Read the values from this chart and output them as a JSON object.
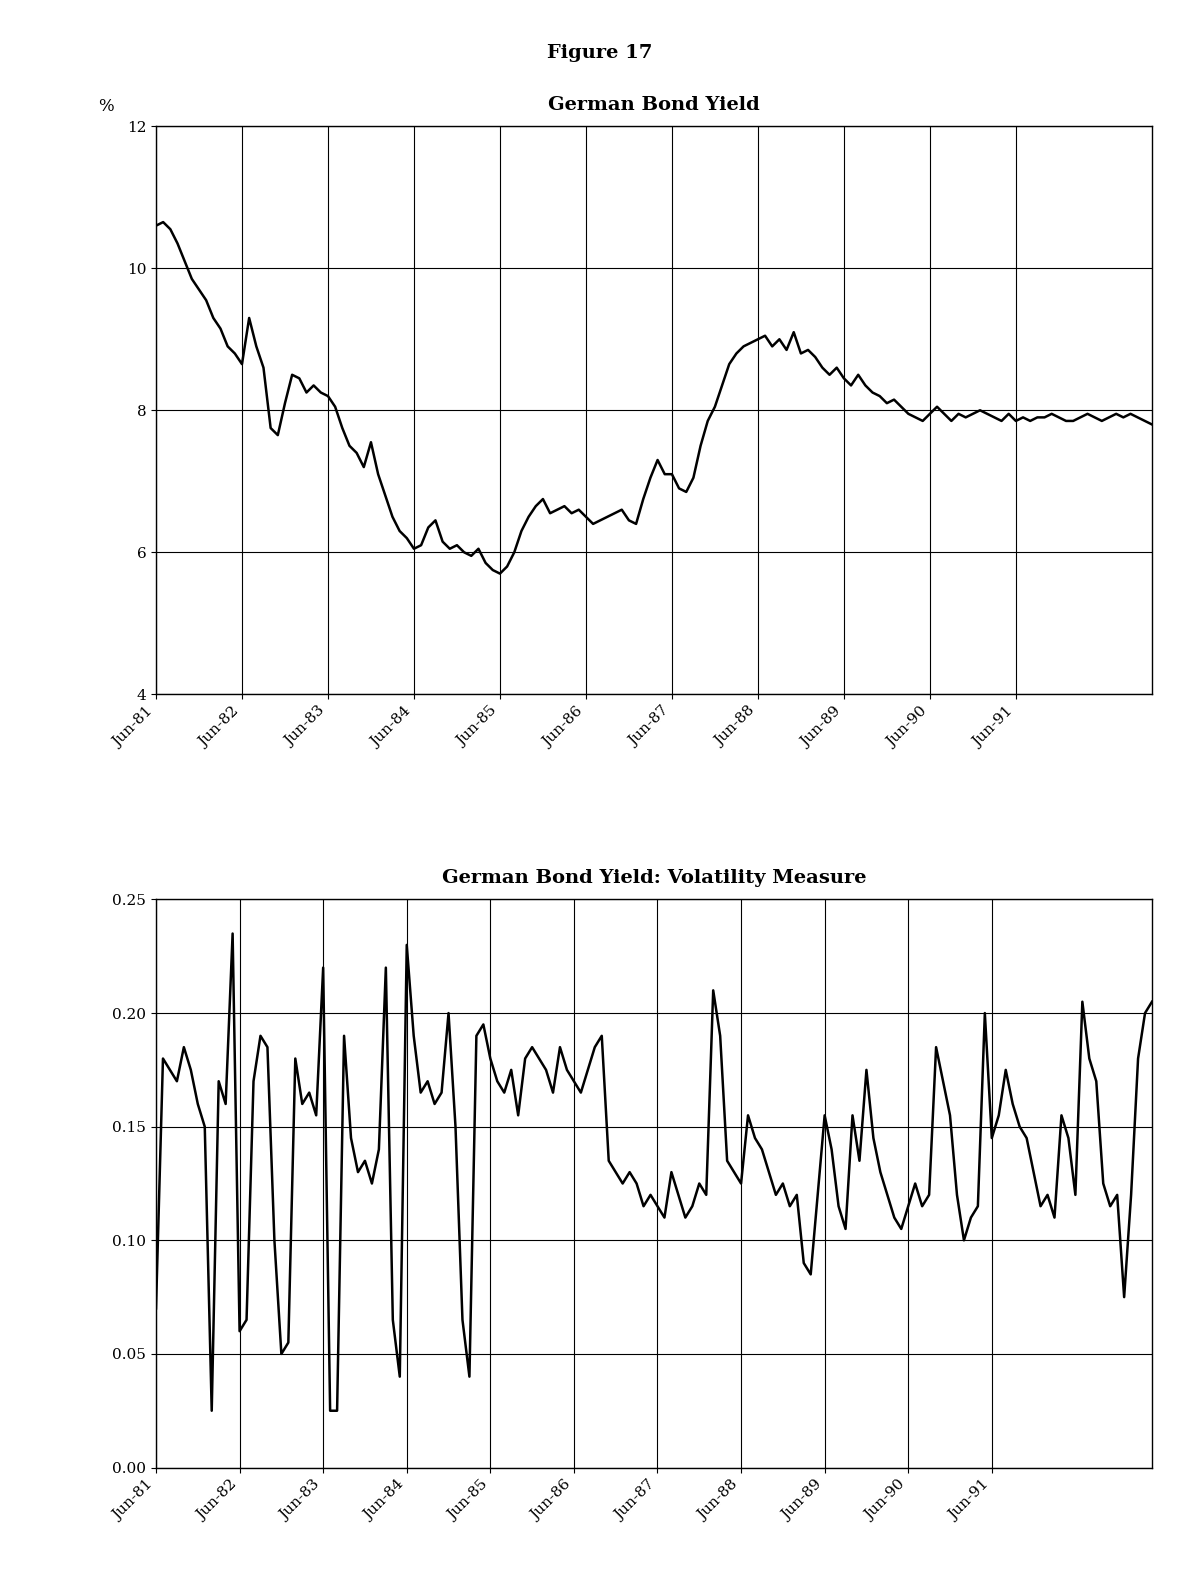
{
  "figure_title": "Figure 17",
  "subplot1_title": "German Bond Yield",
  "subplot2_title": "German Bond Yield: Volatility Measure",
  "ylabel1": "%",
  "ylim1": [
    4,
    12
  ],
  "yticks1": [
    4,
    6,
    8,
    10,
    12
  ],
  "ylim2": [
    0.0,
    0.25
  ],
  "yticks2": [
    0.0,
    0.05,
    0.1,
    0.15,
    0.2,
    0.25
  ],
  "xtick_labels": [
    "Jun-81",
    "Jun-82",
    "Jun-83",
    "Jun-84",
    "Jun-85",
    "Jun-86",
    "Jun-87",
    "Jun-88",
    "Jun-89",
    "Jun-90",
    "Jun-91"
  ],
  "yield_data": [
    10.6,
    10.65,
    10.55,
    10.35,
    10.1,
    9.85,
    9.7,
    9.55,
    9.3,
    9.15,
    8.9,
    8.8,
    8.65,
    9.3,
    8.9,
    8.6,
    7.75,
    7.65,
    8.1,
    8.5,
    8.45,
    8.25,
    8.35,
    8.25,
    8.2,
    8.05,
    7.75,
    7.5,
    7.4,
    7.2,
    7.55,
    7.1,
    6.8,
    6.5,
    6.3,
    6.2,
    6.05,
    6.1,
    6.35,
    6.45,
    6.15,
    6.05,
    6.1,
    6.0,
    5.95,
    6.05,
    5.85,
    5.75,
    5.7,
    5.8,
    6.0,
    6.3,
    6.5,
    6.65,
    6.75,
    6.55,
    6.6,
    6.65,
    6.55,
    6.6,
    6.5,
    6.4,
    6.45,
    6.5,
    6.55,
    6.6,
    6.45,
    6.4,
    6.75,
    7.05,
    7.3,
    7.1,
    7.1,
    6.9,
    6.85,
    7.05,
    7.5,
    7.85,
    8.05,
    8.35,
    8.65,
    8.8,
    8.9,
    8.95,
    9.0,
    9.05,
    8.9,
    9.0,
    8.85,
    9.1,
    8.8,
    8.85,
    8.75,
    8.6,
    8.5,
    8.6,
    8.45,
    8.35,
    8.5,
    8.35,
    8.25,
    8.2,
    8.1,
    8.15,
    8.05,
    7.95,
    7.9,
    7.85,
    7.95,
    8.05,
    7.95,
    7.85,
    7.95,
    7.9,
    7.95,
    8.0,
    7.95,
    7.9,
    7.85,
    7.95,
    7.85,
    7.9,
    7.85,
    7.9,
    7.9,
    7.95,
    7.9,
    7.85,
    7.85,
    7.9,
    7.95,
    7.9,
    7.85,
    7.9,
    7.95,
    7.9,
    7.95,
    7.9,
    7.85,
    7.8
  ],
  "vol_data": [
    0.07,
    0.18,
    0.175,
    0.17,
    0.185,
    0.175,
    0.16,
    0.15,
    0.025,
    0.17,
    0.16,
    0.235,
    0.06,
    0.065,
    0.17,
    0.19,
    0.185,
    0.1,
    0.05,
    0.055,
    0.18,
    0.16,
    0.165,
    0.155,
    0.22,
    0.025,
    0.025,
    0.19,
    0.145,
    0.13,
    0.135,
    0.125,
    0.14,
    0.22,
    0.065,
    0.04,
    0.23,
    0.19,
    0.165,
    0.17,
    0.16,
    0.165,
    0.2,
    0.15,
    0.065,
    0.04,
    0.19,
    0.195,
    0.18,
    0.17,
    0.165,
    0.175,
    0.155,
    0.18,
    0.185,
    0.18,
    0.175,
    0.165,
    0.185,
    0.175,
    0.17,
    0.165,
    0.175,
    0.185,
    0.19,
    0.135,
    0.13,
    0.125,
    0.13,
    0.125,
    0.115,
    0.12,
    0.115,
    0.11,
    0.13,
    0.12,
    0.11,
    0.115,
    0.125,
    0.12,
    0.21,
    0.19,
    0.135,
    0.13,
    0.125,
    0.155,
    0.145,
    0.14,
    0.13,
    0.12,
    0.125,
    0.115,
    0.12,
    0.09,
    0.085,
    0.12,
    0.155,
    0.14,
    0.115,
    0.105,
    0.155,
    0.135,
    0.175,
    0.145,
    0.13,
    0.12,
    0.11,
    0.105,
    0.115,
    0.125,
    0.115,
    0.12,
    0.185,
    0.17,
    0.155,
    0.12,
    0.1,
    0.11,
    0.115,
    0.2,
    0.145,
    0.155,
    0.175,
    0.16,
    0.15,
    0.145,
    0.13,
    0.115,
    0.12,
    0.11,
    0.155,
    0.145,
    0.12,
    0.205,
    0.18,
    0.17,
    0.125,
    0.115,
    0.12,
    0.075,
    0.12,
    0.18,
    0.2,
    0.205
  ],
  "line_color": "#000000",
  "line_width": 1.8,
  "grid_color": "#000000",
  "background_color": "#ffffff",
  "tick_label_fontsize": 11,
  "title_fontsize": 14,
  "figure_title_fontsize": 14
}
